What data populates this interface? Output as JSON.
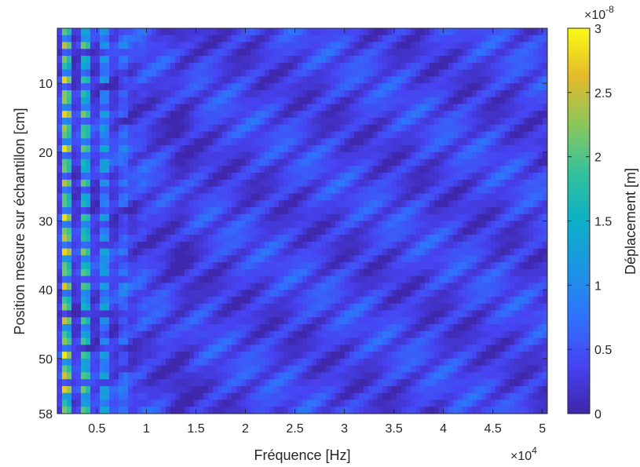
{
  "chart_data": {
    "type": "heatmap",
    "colormap": "parula",
    "xlabel": "Fréquence [Hz]",
    "ylabel": "Position mesure sur échantillon [cm]",
    "colorbar_label": "Déplacement [m]",
    "x_exponent": {
      "base": "×10",
      "power": "4"
    },
    "c_exponent": {
      "base": "×10",
      "power": "-8"
    },
    "xlim": [
      1000,
      50500
    ],
    "ylim": [
      2,
      58
    ],
    "y_reversed": true,
    "clim": [
      0,
      3e-08
    ],
    "x_ticks": [
      {
        "value": 5000,
        "label": "0.5"
      },
      {
        "value": 10000,
        "label": "1"
      },
      {
        "value": 15000,
        "label": "1.5"
      },
      {
        "value": 20000,
        "label": "2"
      },
      {
        "value": 25000,
        "label": "2.5"
      },
      {
        "value": 30000,
        "label": "3"
      },
      {
        "value": 35000,
        "label": "3.5"
      },
      {
        "value": 40000,
        "label": "4"
      },
      {
        "value": 45000,
        "label": "4.5"
      },
      {
        "value": 50000,
        "label": "5"
      }
    ],
    "y_ticks": [
      {
        "value": 10,
        "label": "10"
      },
      {
        "value": 20,
        "label": "20"
      },
      {
        "value": 30,
        "label": "30"
      },
      {
        "value": 40,
        "label": "40"
      },
      {
        "value": 50,
        "label": "50"
      },
      {
        "value": 58,
        "label": "58"
      }
    ],
    "c_ticks": [
      {
        "value": 0,
        "label": "0"
      },
      {
        "value": 5e-09,
        "label": "0.5"
      },
      {
        "value": 1e-08,
        "label": "1"
      },
      {
        "value": 1.5e-08,
        "label": "1.5"
      },
      {
        "value": 2e-08,
        "label": "2"
      },
      {
        "value": 2.5e-08,
        "label": "2.5"
      },
      {
        "value": 3e-08,
        "label": "3"
      }
    ],
    "grid": false,
    "legend": "colorbar-right"
  }
}
